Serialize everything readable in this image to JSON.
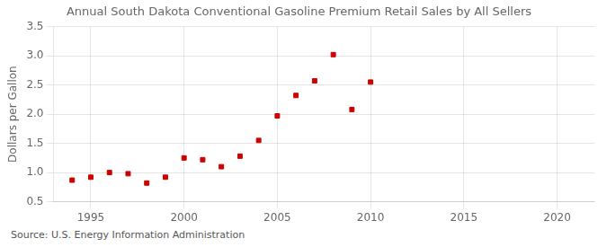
{
  "chart_data": {
    "type": "scatter",
    "title": "Annual South Dakota Conventional Gasoline Premium Retail Sales by All Sellers",
    "y_label": "Dollars per Gallon",
    "annotations": [
      "Source: U.S. Energy Information Administration"
    ],
    "x": [
      1994,
      1995,
      1996,
      1997,
      1998,
      1999,
      2000,
      2001,
      2002,
      2003,
      2004,
      2005,
      2006,
      2007,
      2008,
      2009,
      2010
    ],
    "values": [
      0.87,
      0.92,
      1.0,
      0.98,
      0.82,
      0.92,
      1.25,
      1.22,
      1.1,
      1.28,
      1.55,
      1.97,
      2.32,
      2.57,
      3.02,
      2.08,
      2.55
    ],
    "color": "#cc0000",
    "marker": "square",
    "xlim": [
      1993,
      2022
    ],
    "xticks": [
      1995,
      2000,
      2005,
      2010,
      2015,
      2020
    ],
    "ylim": [
      0.5,
      3.5
    ],
    "yticks": [
      0.5,
      {
        "value": 1.0,
        "label": "1.0"
      },
      1.5,
      {
        "value": 2.0,
        "label": "2.0"
      },
      2.5,
      {
        "value": 3.0,
        "label": "3.0"
      },
      3.5
    ],
    "grid": true
  }
}
